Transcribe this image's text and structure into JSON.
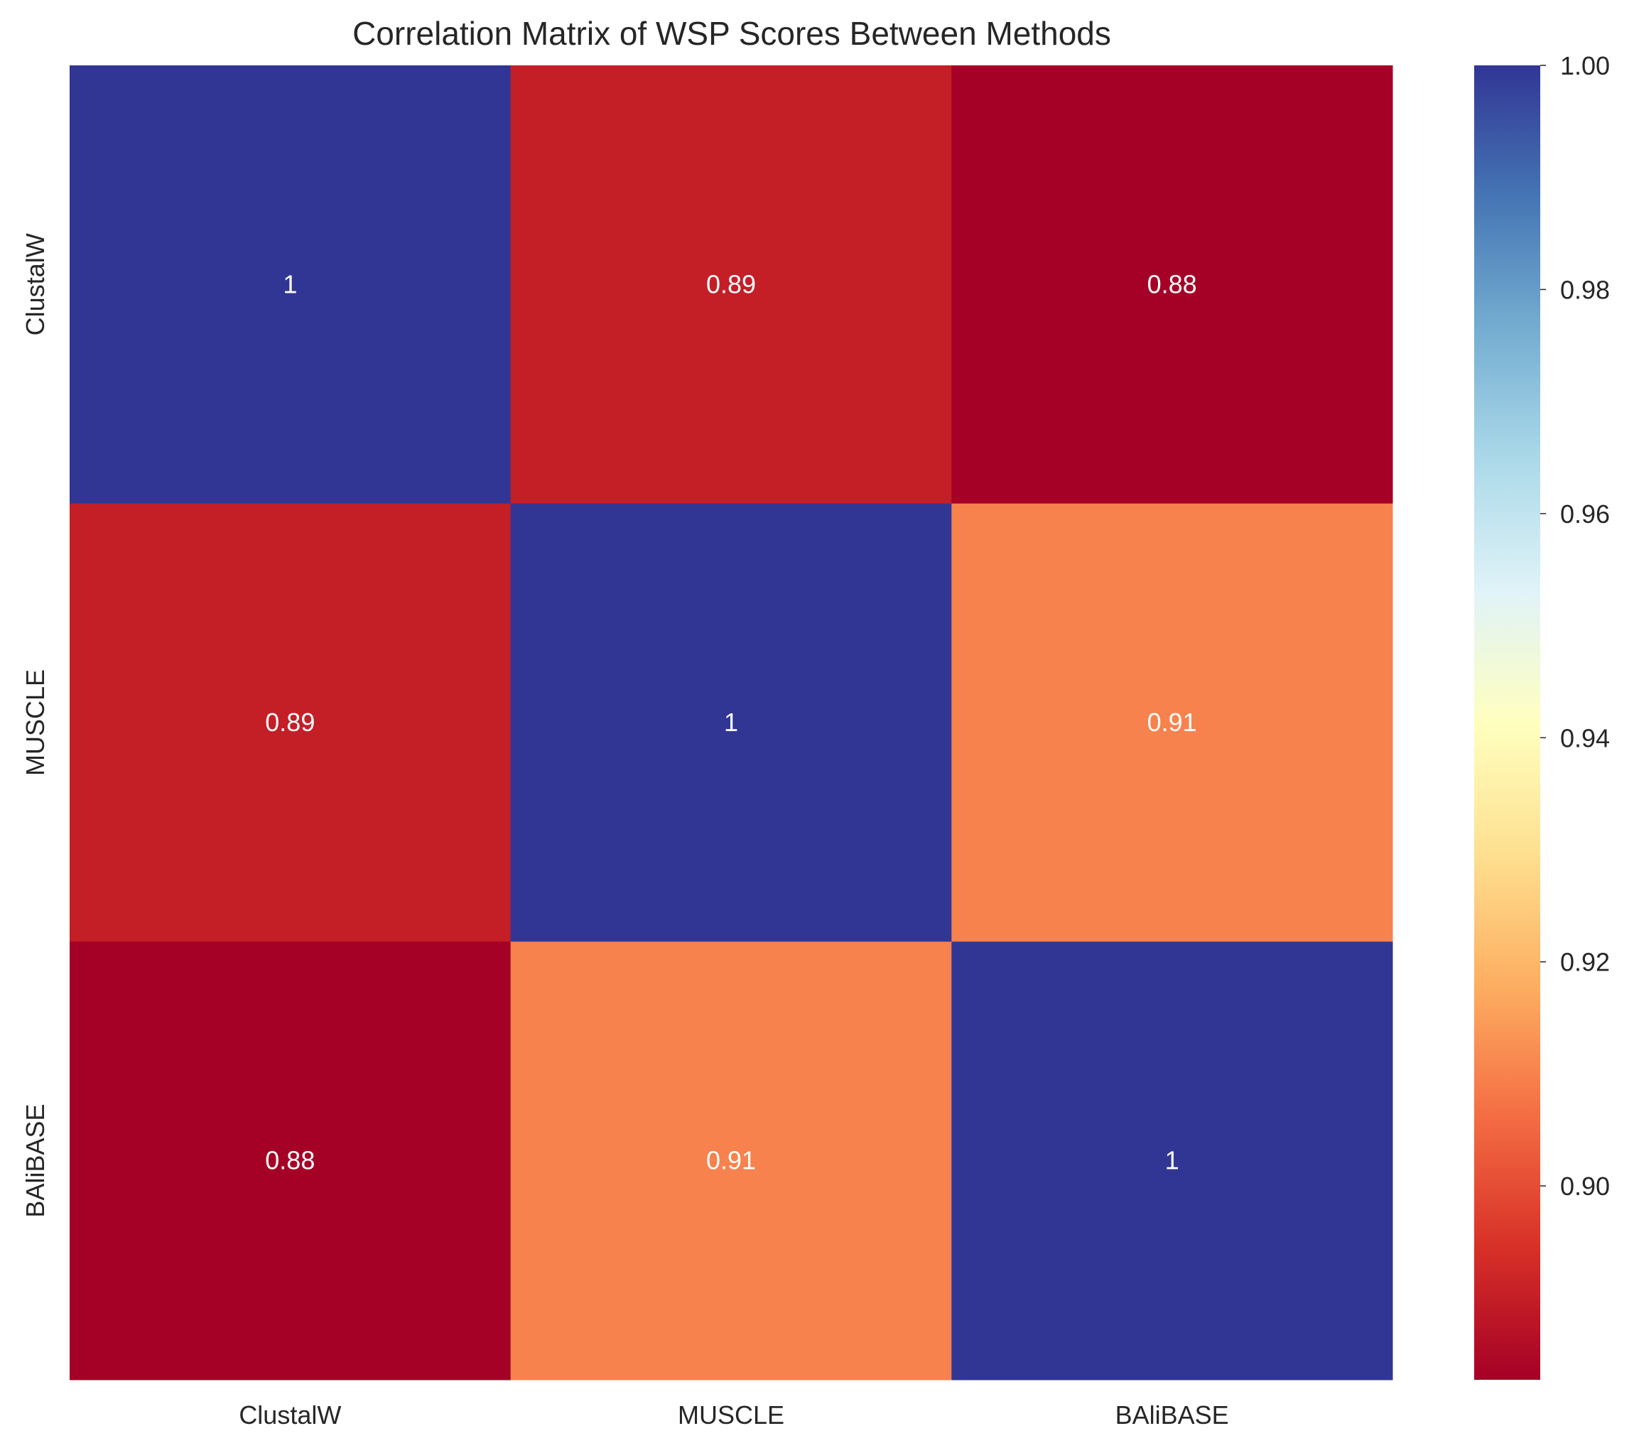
{
  "chart_data": {
    "type": "heatmap",
    "title": "Correlation Matrix of WSP Scores Between Methods",
    "x_categories": [
      "ClustalW",
      "MUSCLE",
      "BAliBASE"
    ],
    "y_categories": [
      "ClustalW",
      "MUSCLE",
      "BAliBASE"
    ],
    "values": [
      [
        1.0,
        0.89,
        0.88
      ],
      [
        0.89,
        1.0,
        0.91
      ],
      [
        0.88,
        0.91,
        1.0
      ]
    ],
    "annotations": [
      [
        "1",
        "0.89",
        "0.88"
      ],
      [
        "0.89",
        "1",
        "0.91"
      ],
      [
        "0.88",
        "0.91",
        "1"
      ]
    ],
    "colormap": "RdYlBu",
    "colorbar": {
      "range": [
        0.8827,
        1.0
      ],
      "ticks": [
        0.9,
        0.92,
        0.94,
        0.96,
        0.98,
        1.0
      ],
      "tick_labels": [
        "0.90",
        "0.92",
        "0.94",
        "0.96",
        "0.98",
        "1.00"
      ]
    },
    "colors": {
      "high": "#313695",
      "low": "#a50026",
      "mid": "#ffffbf"
    },
    "grid": false
  }
}
